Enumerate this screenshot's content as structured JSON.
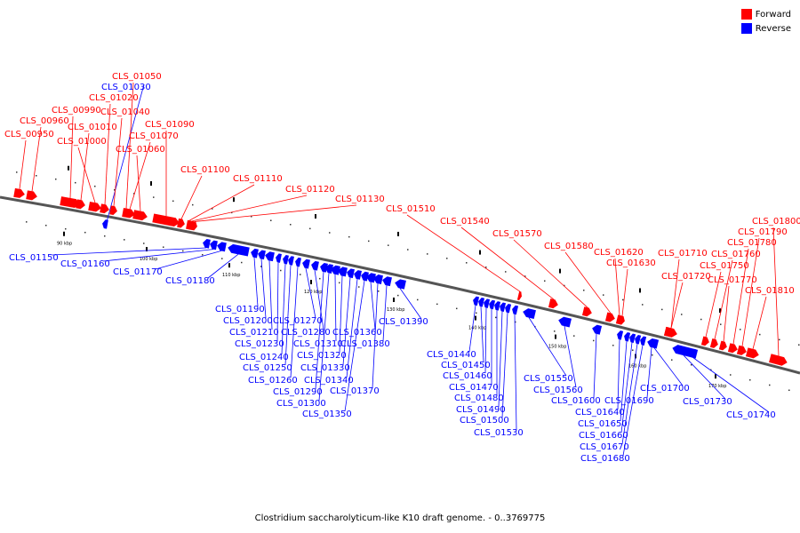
{
  "caption": "Clostridium saccharolyticum-like K10 draft genome. - 0..3769775",
  "legend": [
    {
      "label": "Forward",
      "color": "#ff0000"
    },
    {
      "label": "Reverse",
      "color": "#0000ff"
    }
  ],
  "colors": {
    "forward": "#ff0000",
    "reverse": "#0000ff",
    "backbone": "#555555"
  },
  "ticks": [
    {
      "label": "90 kbp",
      "kbp": 90
    },
    {
      "label": "100 kbp",
      "kbp": 100
    },
    {
      "label": "110 kbp",
      "kbp": 110
    },
    {
      "label": "120 kbp",
      "kbp": 120
    },
    {
      "label": "130 kbp",
      "kbp": 130
    },
    {
      "label": "140 kbp",
      "kbp": 140
    },
    {
      "label": "150 kbp",
      "kbp": 150
    },
    {
      "label": "160 kbp",
      "kbp": 160
    },
    {
      "label": "170 kbp",
      "kbp": 170
    }
  ],
  "genes": [
    {
      "name": "CLS_00950",
      "strand": "forward"
    },
    {
      "name": "CLS_00960",
      "strand": "forward"
    },
    {
      "name": "CLS_00990",
      "strand": "forward"
    },
    {
      "name": "CLS_01000",
      "strand": "forward"
    },
    {
      "name": "CLS_01010",
      "strand": "forward"
    },
    {
      "name": "CLS_01020",
      "strand": "forward"
    },
    {
      "name": "CLS_01030",
      "strand": "reverse"
    },
    {
      "name": "CLS_01040",
      "strand": "forward"
    },
    {
      "name": "CLS_01050",
      "strand": "forward"
    },
    {
      "name": "CLS_01060",
      "strand": "forward"
    },
    {
      "name": "CLS_01070",
      "strand": "forward"
    },
    {
      "name": "CLS_01090",
      "strand": "forward"
    },
    {
      "name": "CLS_01100",
      "strand": "forward"
    },
    {
      "name": "CLS_01110",
      "strand": "forward"
    },
    {
      "name": "CLS_01120",
      "strand": "forward"
    },
    {
      "name": "CLS_01130",
      "strand": "forward"
    },
    {
      "name": "CLS_01150",
      "strand": "reverse"
    },
    {
      "name": "CLS_01160",
      "strand": "reverse"
    },
    {
      "name": "CLS_01170",
      "strand": "reverse"
    },
    {
      "name": "CLS_01180",
      "strand": "reverse"
    },
    {
      "name": "CLS_01190",
      "strand": "reverse"
    },
    {
      "name": "CLS_01200",
      "strand": "reverse"
    },
    {
      "name": "CLS_01210",
      "strand": "reverse"
    },
    {
      "name": "CLS_01230",
      "strand": "reverse"
    },
    {
      "name": "CLS_01240",
      "strand": "reverse"
    },
    {
      "name": "CLS_01250",
      "strand": "reverse"
    },
    {
      "name": "CLS_01260",
      "strand": "reverse"
    },
    {
      "name": "CLS_01270",
      "strand": "reverse"
    },
    {
      "name": "CLS_01280",
      "strand": "reverse"
    },
    {
      "name": "CLS_01290",
      "strand": "reverse"
    },
    {
      "name": "CLS_01300",
      "strand": "reverse"
    },
    {
      "name": "CLS_01310",
      "strand": "reverse"
    },
    {
      "name": "CLS_01320",
      "strand": "reverse"
    },
    {
      "name": "CLS_01330",
      "strand": "reverse"
    },
    {
      "name": "CLS_01340",
      "strand": "reverse"
    },
    {
      "name": "CLS_01350",
      "strand": "reverse"
    },
    {
      "name": "CLS_01360",
      "strand": "reverse"
    },
    {
      "name": "CLS_01370",
      "strand": "reverse"
    },
    {
      "name": "CLS_01380",
      "strand": "reverse"
    },
    {
      "name": "CLS_01390",
      "strand": "reverse"
    },
    {
      "name": "CLS_01440",
      "strand": "reverse"
    },
    {
      "name": "CLS_01450",
      "strand": "reverse"
    },
    {
      "name": "CLS_01460",
      "strand": "reverse"
    },
    {
      "name": "CLS_01470",
      "strand": "reverse"
    },
    {
      "name": "CLS_01480",
      "strand": "reverse"
    },
    {
      "name": "CLS_01490",
      "strand": "reverse"
    },
    {
      "name": "CLS_01500",
      "strand": "reverse"
    },
    {
      "name": "CLS_01510",
      "strand": "forward"
    },
    {
      "name": "CLS_01530",
      "strand": "reverse"
    },
    {
      "name": "CLS_01540",
      "strand": "forward"
    },
    {
      "name": "CLS_01550",
      "strand": "reverse"
    },
    {
      "name": "CLS_01560",
      "strand": "reverse"
    },
    {
      "name": "CLS_01570",
      "strand": "forward"
    },
    {
      "name": "CLS_01580",
      "strand": "forward"
    },
    {
      "name": "CLS_01600",
      "strand": "reverse"
    },
    {
      "name": "CLS_01620",
      "strand": "forward"
    },
    {
      "name": "CLS_01630",
      "strand": "forward"
    },
    {
      "name": "CLS_01640",
      "strand": "reverse"
    },
    {
      "name": "CLS_01650",
      "strand": "reverse"
    },
    {
      "name": "CLS_01660",
      "strand": "reverse"
    },
    {
      "name": "CLS_01670",
      "strand": "reverse"
    },
    {
      "name": "CLS_01680",
      "strand": "reverse"
    },
    {
      "name": "CLS_01690",
      "strand": "reverse"
    },
    {
      "name": "CLS_01700",
      "strand": "reverse"
    },
    {
      "name": "CLS_01710",
      "strand": "forward"
    },
    {
      "name": "CLS_01720",
      "strand": "forward"
    },
    {
      "name": "CLS_01730",
      "strand": "reverse"
    },
    {
      "name": "CLS_01740",
      "strand": "reverse"
    },
    {
      "name": "CLS_01750",
      "strand": "forward"
    },
    {
      "name": "CLS_01760",
      "strand": "forward"
    },
    {
      "name": "CLS_01770",
      "strand": "forward"
    },
    {
      "name": "CLS_01780",
      "strand": "forward"
    },
    {
      "name": "CLS_01790",
      "strand": "forward"
    },
    {
      "name": "CLS_01800",
      "strand": "forward"
    },
    {
      "name": "CLS_01810",
      "strand": "forward"
    }
  ]
}
